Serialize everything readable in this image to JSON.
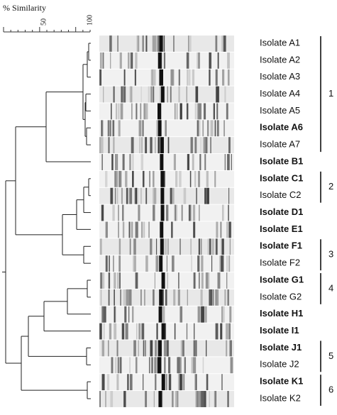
{
  "scale": {
    "label": "% Similarity",
    "ticks": [
      "50",
      "100"
    ]
  },
  "isolates": [
    {
      "label": "Isolate A1",
      "bold": false
    },
    {
      "label": "Isolate A2",
      "bold": false
    },
    {
      "label": "Isolate A3",
      "bold": false
    },
    {
      "label": "Isolate A4",
      "bold": false
    },
    {
      "label": "Isolate A5",
      "bold": false
    },
    {
      "label": "Isolate A6",
      "bold": true
    },
    {
      "label": "Isolate A7",
      "bold": false
    },
    {
      "label": "Isolate B1",
      "bold": true
    },
    {
      "label": "Isolate C1",
      "bold": true
    },
    {
      "label": "Isolate C2",
      "bold": false
    },
    {
      "label": "Isolate D1",
      "bold": true
    },
    {
      "label": "Isolate E1",
      "bold": true
    },
    {
      "label": "Isolate F1",
      "bold": true
    },
    {
      "label": "Isolate F2",
      "bold": false
    },
    {
      "label": "Isolate G1",
      "bold": true
    },
    {
      "label": "Isolate G2",
      "bold": false
    },
    {
      "label": "Isolate H1",
      "bold": true
    },
    {
      "label": "Isolate  I1",
      "bold": true
    },
    {
      "label": "Isolate J1",
      "bold": true
    },
    {
      "label": "Isolate J2",
      "bold": false
    },
    {
      "label": "Isolate K1",
      "bold": true
    },
    {
      "label": "Isolate K2",
      "bold": false
    }
  ],
  "clusters": [
    {
      "label": "1",
      "first": 0,
      "last": 6
    },
    {
      "label": "2",
      "first": 8,
      "last": 9
    },
    {
      "label": "3",
      "first": 12,
      "last": 13
    },
    {
      "label": "4",
      "first": 14,
      "last": 15
    },
    {
      "label": "5",
      "first": 18,
      "last": 19
    },
    {
      "label": "6",
      "first": 20,
      "last": 21
    }
  ]
}
